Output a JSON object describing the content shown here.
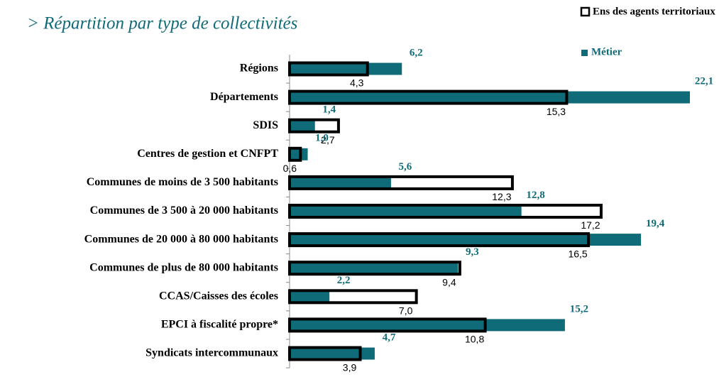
{
  "chart_data": {
    "type": "bar",
    "title": "> Répartition par type de collectivités",
    "categories": [
      "Régions",
      "Départements",
      "SDIS",
      "Centres de gestion et CNFPT",
      "Communes de moins de 3 500 habitants",
      "Communes de 3 500 à 20 000 habitants",
      "Communes de 20 000 à 80 000 habitants",
      "Communes de plus de 80 000 habitants",
      "CCAS/Caisses des écoles",
      "EPCI à fiscalité propre*",
      "Syndicats intercommunaux"
    ],
    "series": [
      {
        "name": "Ens des agents territoriaux",
        "color": "#ffffff",
        "values": [
          4.3,
          15.3,
          2.7,
          0.6,
          12.3,
          17.2,
          16.5,
          9.4,
          7.0,
          10.8,
          3.9
        ],
        "value_labels": [
          "4,3",
          "15,3",
          "2,7",
          "0,6",
          "12,3",
          "17,2",
          "16,5",
          "9,4",
          "7,0",
          "10,8",
          "3,9"
        ]
      },
      {
        "name": "Métier",
        "color": "#106b78",
        "values": [
          6.2,
          22.1,
          1.4,
          1.0,
          5.6,
          12.8,
          19.4,
          9.3,
          2.2,
          15.2,
          4.7
        ],
        "value_labels": [
          "6,2",
          "22,1",
          "1,4",
          "1,0",
          "5,6",
          "12,8",
          "19,4",
          "9,3",
          "2,2",
          "15,2",
          "4,7"
        ]
      }
    ]
  }
}
